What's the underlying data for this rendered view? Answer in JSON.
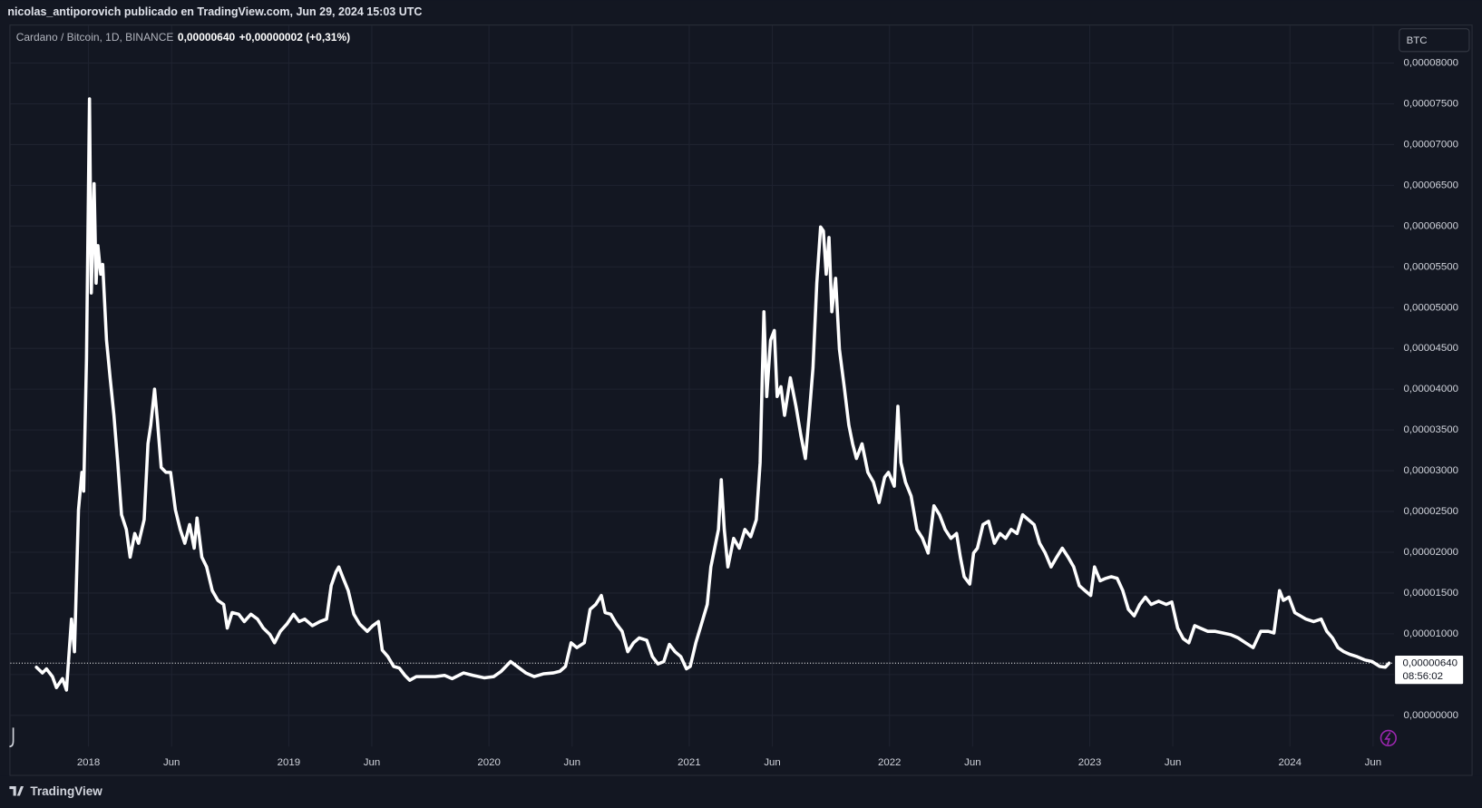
{
  "header": {
    "attribution": "nicolas_antiporovich publicado en TradingView.com, Jun 29, 2024 15:03 UTC",
    "symbol": "Cardano / Bitcoin, 1D, BINANCE",
    "price": "0,00000640",
    "change": "+0,00000002 (+0,31%)",
    "currency_button": "BTC"
  },
  "footer": {
    "brand": "TradingView"
  },
  "chart_data": {
    "type": "line",
    "color": "#ffffff",
    "grid": true,
    "xlim": [
      2017.61,
      2024.52
    ],
    "ylim": [
      -3.83e-06,
      8.46e-05
    ],
    "xticks": [
      2018,
      {
        "value": 2018.415,
        "label": "Jun"
      },
      2019,
      {
        "value": 2019.415,
        "label": "Jun"
      },
      2020,
      {
        "value": 2020.415,
        "label": "Jun"
      },
      2021,
      {
        "value": 2021.415,
        "label": "Jun"
      },
      2022,
      {
        "value": 2022.415,
        "label": "Jun"
      },
      2023,
      {
        "value": 2023.415,
        "label": "Jun"
      },
      2024,
      {
        "value": 2024.415,
        "label": "Jun"
      }
    ],
    "yticks": [
      {
        "value": 0,
        "label": "0,00000000"
      },
      {
        "value": 5e-06,
        "label": "0,00000500"
      },
      {
        "value": 1e-05,
        "label": "0,00001000"
      },
      {
        "value": 1.5e-05,
        "label": "0,00001500"
      },
      {
        "value": 2e-05,
        "label": "0,00002000"
      },
      {
        "value": 2.5e-05,
        "label": "0,00002500"
      },
      {
        "value": 3e-05,
        "label": "0,00003000"
      },
      {
        "value": 3.5e-05,
        "label": "0,00003500"
      },
      {
        "value": 4e-05,
        "label": "0,00004000"
      },
      {
        "value": 4.5e-05,
        "label": "0,00004500"
      },
      {
        "value": 5e-05,
        "label": "0,00005000"
      },
      {
        "value": 5.5e-05,
        "label": "0,00005500"
      },
      {
        "value": 6e-05,
        "label": "0,00006000"
      },
      {
        "value": 6.5e-05,
        "label": "0,00006500"
      },
      {
        "value": 7e-05,
        "label": "0,00007000"
      },
      {
        "value": 7.5e-05,
        "label": "0,00007500"
      },
      {
        "value": 8e-05,
        "label": "0,00008000"
      }
    ],
    "last_value": {
      "value": 6.4e-06,
      "label": "0,00000640"
    },
    "countdown": "08:56:02",
    "x": [
      2017.74,
      2017.77,
      2017.79,
      2017.82,
      2017.84,
      2017.87,
      2017.89,
      2017.9,
      2017.915,
      2017.93,
      2017.95,
      2017.967,
      2017.976,
      2017.99,
      2018.005,
      2018.014,
      2018.028,
      2018.038,
      2018.047,
      2018.061,
      2018.071,
      2018.09,
      2018.108,
      2018.127,
      2018.146,
      2018.165,
      2018.189,
      2018.208,
      2018.231,
      2018.25,
      2018.278,
      2018.297,
      2018.311,
      2018.33,
      2018.344,
      2018.363,
      2018.387,
      2018.41,
      2018.434,
      2018.458,
      2018.481,
      2018.505,
      2018.528,
      2018.542,
      2018.566,
      2018.59,
      2018.618,
      2018.646,
      2018.675,
      2018.693,
      2018.717,
      2018.75,
      2018.778,
      2018.811,
      2018.844,
      2018.873,
      2018.906,
      2018.929,
      2018.958,
      2018.991,
      2019.024,
      2019.052,
      2019.08,
      2019.118,
      2019.156,
      2019.189,
      2019.212,
      2019.236,
      2019.25,
      2019.269,
      2019.297,
      2019.325,
      2019.354,
      2019.392,
      2019.42,
      2019.448,
      2019.467,
      2019.495,
      2019.524,
      2019.552,
      2019.58,
      2019.604,
      2019.637,
      2019.684,
      2019.731,
      2019.778,
      2019.816,
      2019.873,
      2019.92,
      2019.976,
      2020.024,
      2020.061,
      2020.108,
      2020.146,
      2020.184,
      2020.226,
      2020.274,
      2020.321,
      2020.354,
      2020.382,
      2020.41,
      2020.439,
      2020.476,
      2020.505,
      2020.533,
      2020.561,
      2020.58,
      2020.608,
      2020.637,
      2020.665,
      2020.693,
      2020.722,
      2020.75,
      2020.788,
      2020.816,
      2020.844,
      2020.873,
      2020.901,
      2020.929,
      2020.958,
      2020.986,
      2021.005,
      2021.033,
      2021.061,
      2021.09,
      2021.108,
      2021.127,
      2021.146,
      2021.16,
      2021.175,
      2021.193,
      2021.222,
      2021.25,
      2021.278,
      2021.307,
      2021.335,
      2021.354,
      2021.373,
      2021.387,
      2021.406,
      2021.425,
      2021.439,
      2021.458,
      2021.476,
      2021.505,
      2021.533,
      2021.557,
      2021.58,
      2021.599,
      2021.618,
      2021.637,
      2021.656,
      2021.67,
      2021.684,
      2021.698,
      2021.712,
      2021.731,
      2021.75,
      2021.774,
      2021.797,
      2021.816,
      2021.835,
      2021.863,
      2021.892,
      2021.92,
      2021.948,
      2021.976,
      2021.995,
      2022.024,
      2022.042,
      2022.057,
      2022.08,
      2022.108,
      2022.137,
      2022.165,
      2022.193,
      2022.222,
      2022.25,
      2022.278,
      2022.307,
      2022.335,
      2022.354,
      2022.373,
      2022.401,
      2022.42,
      2022.439,
      2022.467,
      2022.495,
      2022.524,
      2022.552,
      2022.58,
      2022.608,
      2022.637,
      2022.665,
      2022.693,
      2022.722,
      2022.75,
      2022.778,
      2022.807,
      2022.835,
      2022.863,
      2022.892,
      2022.92,
      2022.948,
      2022.976,
      2023.005,
      2023.024,
      2023.052,
      2023.08,
      2023.108,
      2023.137,
      2023.165,
      2023.193,
      2023.222,
      2023.25,
      2023.278,
      2023.307,
      2023.344,
      2023.382,
      2023.41,
      2023.439,
      2023.467,
      2023.495,
      2023.524,
      2023.552,
      2023.59,
      2023.627,
      2023.665,
      2023.703,
      2023.741,
      2023.778,
      2023.816,
      2023.854,
      2023.892,
      2023.92,
      2023.948,
      2023.967,
      2023.995,
      2024.024,
      2024.052,
      2024.08,
      2024.118,
      2024.156,
      2024.184,
      2024.212,
      2024.24,
      2024.269,
      2024.297,
      2024.335,
      2024.373,
      2024.41,
      2024.448,
      2024.476,
      2024.495
    ],
    "values": [
      5.9e-06,
      5.2e-06,
      5.7e-06,
      4.75e-06,
      3.4e-06,
      4.5e-06,
      3.1e-06,
      6.6e-06,
      1.18e-05,
      7.8e-06,
      2.52e-05,
      2.98e-05,
      2.75e-05,
      4.37e-05,
      7.56e-05,
      5.18e-05,
      6.52e-05,
      5.3e-05,
      5.76e-05,
      5.41e-05,
      5.53e-05,
      4.6e-05,
      4.14e-05,
      3.68e-05,
      3.1e-05,
      2.46e-05,
      2.28e-05,
      1.94e-05,
      2.23e-05,
      2.11e-05,
      2.4e-05,
      3.33e-05,
      3.56e-05,
      4e-05,
      3.62e-05,
      3.04e-05,
      2.98e-05,
      2.98e-05,
      2.52e-05,
      2.28e-05,
      2.11e-05,
      2.34e-05,
      2.05e-05,
      2.42e-05,
      1.94e-05,
      1.82e-05,
      1.53e-05,
      1.41e-05,
      1.36e-05,
      1.07e-05,
      1.26e-05,
      1.24e-05,
      1.15e-05,
      1.24e-05,
      1.18e-05,
      1.07e-05,
      9.9e-06,
      8.9e-06,
      1.03e-05,
      1.12e-05,
      1.24e-05,
      1.15e-05,
      1.18e-05,
      1.1e-05,
      1.15e-05,
      1.18e-05,
      1.59e-05,
      1.76e-05,
      1.82e-05,
      1.7e-05,
      1.53e-05,
      1.24e-05,
      1.12e-05,
      1.03e-05,
      1.1e-05,
      1.15e-05,
      8e-06,
      7.2e-06,
      6e-06,
      5.8e-06,
      4.9e-06,
      4.3e-06,
      4.75e-06,
      4.75e-06,
      4.75e-06,
      4.9e-06,
      4.5e-06,
      5.2e-06,
      4.9e-06,
      4.6e-06,
      4.75e-06,
      5.4e-06,
      6.6e-06,
      5.9e-06,
      5.2e-06,
      4.75e-06,
      5.1e-06,
      5.2e-06,
      5.4e-06,
      6e-06,
      8.9e-06,
      8.3e-06,
      8.9e-06,
      1.3e-05,
      1.36e-05,
      1.47e-05,
      1.26e-05,
      1.24e-05,
      1.12e-05,
      1.03e-05,
      7.8e-06,
      8.9e-06,
      9.5e-06,
      9.2e-06,
      7.2e-06,
      6.3e-06,
      6.6e-06,
      8.7e-06,
      7.8e-06,
      7.2e-06,
      5.7e-06,
      6e-06,
      8.9e-06,
      1.12e-05,
      1.36e-05,
      1.82e-05,
      2.05e-05,
      2.28e-05,
      2.89e-05,
      2.28e-05,
      1.82e-05,
      2.17e-05,
      2.05e-05,
      2.28e-05,
      2.19e-05,
      2.4e-05,
      3.1e-05,
      4.95e-05,
      3.91e-05,
      4.6e-05,
      4.72e-05,
      3.91e-05,
      4.03e-05,
      3.68e-05,
      4.14e-05,
      3.79e-05,
      3.44e-05,
      3.15e-05,
      3.68e-05,
      4.26e-05,
      5.3e-05,
      5.99e-05,
      5.94e-05,
      5.41e-05,
      5.86e-05,
      4.95e-05,
      5.36e-05,
      4.49e-05,
      4.03e-05,
      3.56e-05,
      3.33e-05,
      3.15e-05,
      3.33e-05,
      2.98e-05,
      2.86e-05,
      2.61e-05,
      2.92e-05,
      2.98e-05,
      2.81e-05,
      3.79e-05,
      3.1e-05,
      2.86e-05,
      2.69e-05,
      2.28e-05,
      2.17e-05,
      1.99e-05,
      2.57e-05,
      2.46e-05,
      2.28e-05,
      2.17e-05,
      2.23e-05,
      1.94e-05,
      1.7e-05,
      1.61e-05,
      1.99e-05,
      2.05e-05,
      2.34e-05,
      2.38e-05,
      2.11e-05,
      2.23e-05,
      2.17e-05,
      2.28e-05,
      2.23e-05,
      2.46e-05,
      2.4e-05,
      2.34e-05,
      2.11e-05,
      1.99e-05,
      1.82e-05,
      1.94e-05,
      2.05e-05,
      1.94e-05,
      1.82e-05,
      1.59e-05,
      1.53e-05,
      1.47e-05,
      1.82e-05,
      1.65e-05,
      1.68e-05,
      1.7e-05,
      1.68e-05,
      1.53e-05,
      1.3e-05,
      1.22e-05,
      1.36e-05,
      1.45e-05,
      1.36e-05,
      1.4e-05,
      1.36e-05,
      1.39e-05,
      1.07e-05,
      9.4e-06,
      8.9e-06,
      1.1e-05,
      1.07e-05,
      1.03e-05,
      1.03e-05,
      1.01e-05,
      9.9e-06,
      9.5e-06,
      8.9e-06,
      8.3e-06,
      1.03e-05,
      1.03e-05,
      1.01e-05,
      1.53e-05,
      1.41e-05,
      1.45e-05,
      1.26e-05,
      1.22e-05,
      1.18e-05,
      1.15e-05,
      1.18e-05,
      1.03e-05,
      9.5e-06,
      8.3e-06,
      7.8e-06,
      7.5e-06,
      7.2e-06,
      6.8e-06,
      6.6e-06,
      6e-06,
      5.9e-06,
      6.4e-06
    ]
  }
}
